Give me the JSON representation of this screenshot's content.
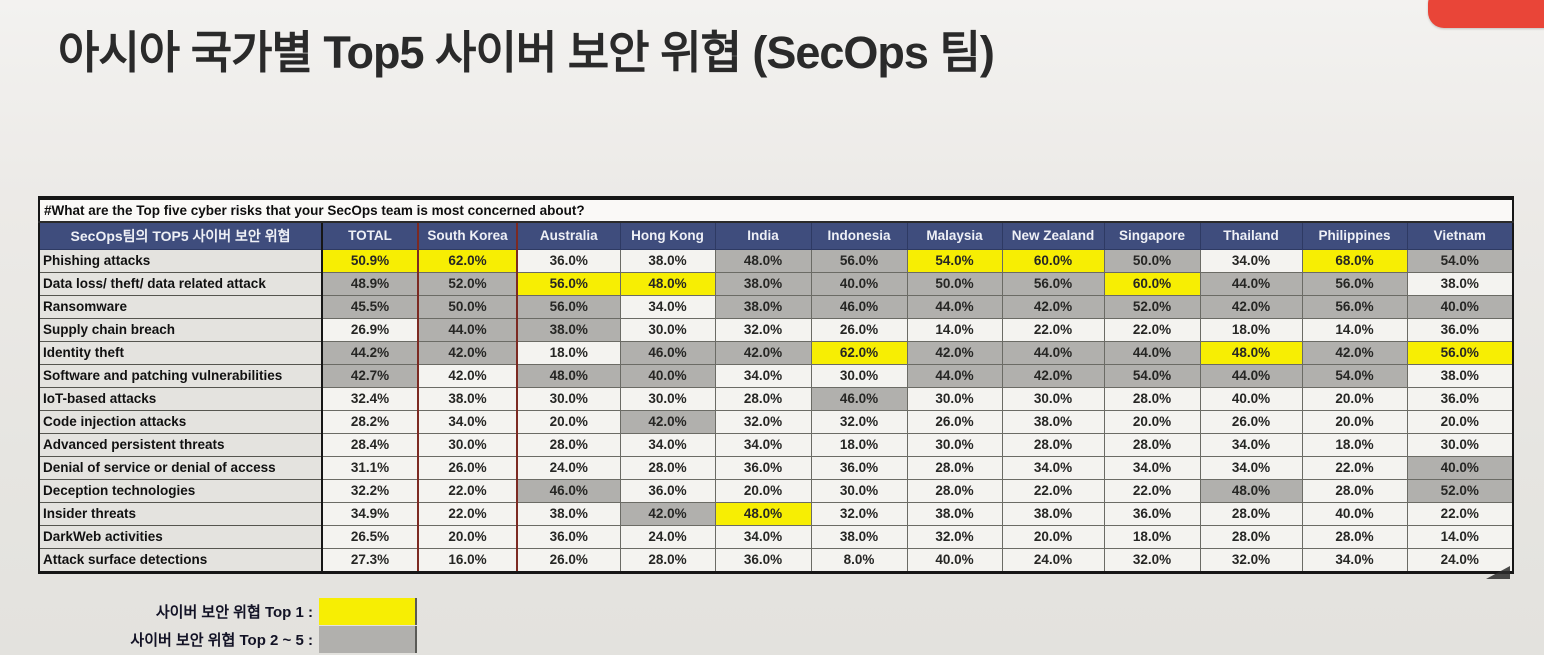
{
  "title": "아시아 국가별 Top5 사이버 보안 위협 (SecOps 팀)",
  "chart_data": {
    "type": "table",
    "title": "아시아 국가별 Top5 사이버 보안 위협 (SecOps 팀)",
    "question": "#What are the Top five cyber risks that your SecOps team is most concerned about?",
    "row_header_label": "SecOps팀의 TOP5 사이버 보안 위협",
    "columns": [
      "TOTAL",
      "South Korea",
      "Australia",
      "Hong Kong",
      "India",
      "Indonesia",
      "Malaysia",
      "New Zealand",
      "Singapore",
      "Thailand",
      "Philippines",
      "Vietnam"
    ],
    "rank_legend": {
      "0": "not in top 5 (white)",
      "1": "Top 2~5 (gray)",
      "2": "Top 1 (yellow)"
    },
    "rows": [
      {
        "label": "Phishing attacks",
        "values": [
          "50.9%",
          "62.0%",
          "36.0%",
          "38.0%",
          "48.0%",
          "56.0%",
          "54.0%",
          "60.0%",
          "50.0%",
          "34.0%",
          "68.0%",
          "54.0%"
        ],
        "rank": [
          2,
          2,
          0,
          0,
          1,
          1,
          2,
          2,
          1,
          0,
          2,
          1
        ]
      },
      {
        "label": "Data loss/ theft/ data related attack",
        "values": [
          "48.9%",
          "52.0%",
          "56.0%",
          "48.0%",
          "38.0%",
          "40.0%",
          "50.0%",
          "56.0%",
          "60.0%",
          "44.0%",
          "56.0%",
          "38.0%"
        ],
        "rank": [
          1,
          1,
          2,
          2,
          1,
          1,
          1,
          1,
          2,
          1,
          1,
          0
        ]
      },
      {
        "label": "Ransomware",
        "values": [
          "45.5%",
          "50.0%",
          "56.0%",
          "34.0%",
          "38.0%",
          "46.0%",
          "44.0%",
          "42.0%",
          "52.0%",
          "42.0%",
          "56.0%",
          "40.0%"
        ],
        "rank": [
          1,
          1,
          1,
          0,
          1,
          1,
          1,
          1,
          1,
          1,
          1,
          1
        ]
      },
      {
        "label": "Supply chain breach",
        "values": [
          "26.9%",
          "44.0%",
          "38.0%",
          "30.0%",
          "32.0%",
          "26.0%",
          "14.0%",
          "22.0%",
          "22.0%",
          "18.0%",
          "14.0%",
          "36.0%"
        ],
        "rank": [
          0,
          1,
          1,
          0,
          0,
          0,
          0,
          0,
          0,
          0,
          0,
          0
        ]
      },
      {
        "label": "Identity theft",
        "values": [
          "44.2%",
          "42.0%",
          "18.0%",
          "46.0%",
          "42.0%",
          "62.0%",
          "42.0%",
          "44.0%",
          "44.0%",
          "48.0%",
          "42.0%",
          "56.0%"
        ],
        "rank": [
          1,
          1,
          0,
          1,
          1,
          2,
          1,
          1,
          1,
          2,
          1,
          2
        ]
      },
      {
        "label": "Software and patching vulnerabilities",
        "values": [
          "42.7%",
          "42.0%",
          "48.0%",
          "40.0%",
          "34.0%",
          "30.0%",
          "44.0%",
          "42.0%",
          "54.0%",
          "44.0%",
          "54.0%",
          "38.0%"
        ],
        "rank": [
          1,
          0,
          1,
          1,
          0,
          0,
          1,
          1,
          1,
          1,
          1,
          0
        ]
      },
      {
        "label": "IoT-based attacks",
        "values": [
          "32.4%",
          "38.0%",
          "30.0%",
          "30.0%",
          "28.0%",
          "46.0%",
          "30.0%",
          "30.0%",
          "28.0%",
          "40.0%",
          "20.0%",
          "36.0%"
        ],
        "rank": [
          0,
          0,
          0,
          0,
          0,
          1,
          0,
          0,
          0,
          0,
          0,
          0
        ]
      },
      {
        "label": "Code injection attacks",
        "values": [
          "28.2%",
          "34.0%",
          "20.0%",
          "42.0%",
          "32.0%",
          "32.0%",
          "26.0%",
          "38.0%",
          "20.0%",
          "26.0%",
          "20.0%",
          "20.0%"
        ],
        "rank": [
          0,
          0,
          0,
          1,
          0,
          0,
          0,
          0,
          0,
          0,
          0,
          0
        ]
      },
      {
        "label": "Advanced persistent threats",
        "values": [
          "28.4%",
          "30.0%",
          "28.0%",
          "34.0%",
          "34.0%",
          "18.0%",
          "30.0%",
          "28.0%",
          "28.0%",
          "34.0%",
          "18.0%",
          "30.0%"
        ],
        "rank": [
          0,
          0,
          0,
          0,
          0,
          0,
          0,
          0,
          0,
          0,
          0,
          0
        ]
      },
      {
        "label": "Denial of service or denial of access",
        "values": [
          "31.1%",
          "26.0%",
          "24.0%",
          "28.0%",
          "36.0%",
          "36.0%",
          "28.0%",
          "34.0%",
          "34.0%",
          "34.0%",
          "22.0%",
          "40.0%"
        ],
        "rank": [
          0,
          0,
          0,
          0,
          0,
          0,
          0,
          0,
          0,
          0,
          0,
          1
        ]
      },
      {
        "label": "Deception technologies",
        "values": [
          "32.2%",
          "22.0%",
          "46.0%",
          "36.0%",
          "20.0%",
          "30.0%",
          "28.0%",
          "22.0%",
          "22.0%",
          "48.0%",
          "28.0%",
          "52.0%"
        ],
        "rank": [
          0,
          0,
          1,
          0,
          0,
          0,
          0,
          0,
          0,
          1,
          0,
          1
        ]
      },
      {
        "label": "Insider threats",
        "values": [
          "34.9%",
          "22.0%",
          "38.0%",
          "42.0%",
          "48.0%",
          "32.0%",
          "38.0%",
          "38.0%",
          "36.0%",
          "28.0%",
          "40.0%",
          "22.0%"
        ],
        "rank": [
          0,
          0,
          0,
          1,
          2,
          0,
          0,
          0,
          0,
          0,
          0,
          0
        ]
      },
      {
        "label": "DarkWeb activities",
        "values": [
          "26.5%",
          "20.0%",
          "36.0%",
          "24.0%",
          "34.0%",
          "38.0%",
          "32.0%",
          "20.0%",
          "18.0%",
          "28.0%",
          "28.0%",
          "14.0%"
        ],
        "rank": [
          0,
          0,
          0,
          0,
          0,
          0,
          0,
          0,
          0,
          0,
          0,
          0
        ]
      },
      {
        "label": "Attack surface detections",
        "values": [
          "27.3%",
          "16.0%",
          "26.0%",
          "28.0%",
          "36.0%",
          "8.0%",
          "40.0%",
          "24.0%",
          "32.0%",
          "32.0%",
          "34.0%",
          "24.0%"
        ],
        "rank": [
          0,
          0,
          0,
          0,
          0,
          0,
          0,
          0,
          0,
          0,
          0,
          0
        ]
      }
    ],
    "legend_position": "bottom-left"
  },
  "legend": {
    "top1_label": "사이버 보안 위협 Top 1 :",
    "top2_5_label": "사이버 보안 위협 Top 2 ~ 5 :"
  },
  "colors": {
    "top1_highlight": "#f7ee03",
    "top2_5_highlight": "#b1b0ad",
    "header_bg": "#3f4d7d",
    "south_korea_border": "#7c2a22",
    "accent_red_tab": "#e94538",
    "cell_white": "#f4f3f0"
  }
}
